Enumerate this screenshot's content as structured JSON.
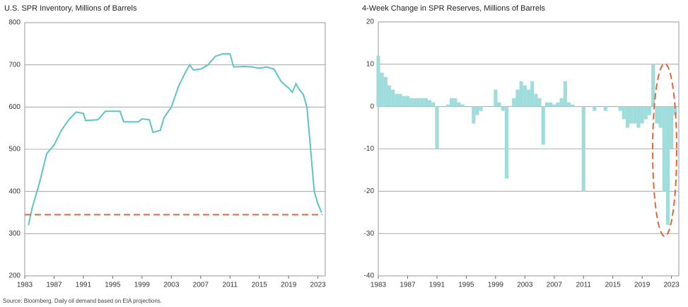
{
  "chart_data": [
    {
      "type": "line",
      "title": "U.S. SPR Inventory, Millions of Barrels",
      "color": "#5cc4c4",
      "x": [
        1983.5,
        1984,
        1985,
        1986,
        1987,
        1988,
        1989,
        1990,
        1991,
        1991.3,
        1993,
        1994,
        1996,
        1996.5,
        1998.5,
        1999,
        2000,
        2000.5,
        2001.5,
        2002,
        2003,
        2004,
        2005,
        2005.5,
        2006,
        2007,
        2008,
        2009,
        2010,
        2011,
        2011.5,
        2013,
        2014,
        2015,
        2016,
        2017,
        2018,
        2019,
        2019.5,
        2020,
        2020.5,
        2021,
        2021.5,
        2022,
        2022.5,
        2023,
        2023.5
      ],
      "values": [
        320,
        360,
        420,
        490,
        510,
        545,
        570,
        588,
        585,
        568,
        570,
        590,
        590,
        565,
        565,
        572,
        570,
        540,
        545,
        575,
        600,
        650,
        685,
        700,
        688,
        690,
        700,
        720,
        726,
        726,
        695,
        696,
        695,
        692,
        695,
        690,
        660,
        645,
        635,
        655,
        640,
        630,
        600,
        500,
        400,
        370,
        350
      ],
      "reference_line": 345,
      "reference_color": "#e0663a",
      "xlim": [
        1983,
        2024
      ],
      "xticks": [
        1983,
        1987,
        1991,
        1995,
        1999,
        2003,
        2007,
        2011,
        2015,
        2019,
        2023
      ],
      "ylim": [
        200,
        800
      ],
      "yticks": [
        200,
        300,
        400,
        500,
        600,
        700,
        800
      ],
      "grid": true
    },
    {
      "type": "bar",
      "title": "4-Week Change in SPR Reserves, Millions of Barrels",
      "color": "#9fdcdc",
      "x": [
        1983,
        1983.5,
        1984,
        1984.5,
        1985,
        1985.5,
        1986,
        1986.5,
        1987,
        1987.5,
        1988,
        1988.5,
        1989,
        1989.5,
        1990,
        1990.5,
        1991,
        1991.5,
        1992,
        1992.5,
        1993,
        1993.5,
        1994,
        1994.5,
        1995,
        1995.5,
        1996,
        1996.5,
        1997,
        1997.5,
        1998,
        1998.5,
        1999,
        1999.5,
        2000,
        2000.5,
        2001,
        2001.5,
        2002,
        2002.5,
        2003,
        2003.5,
        2004,
        2004.5,
        2005,
        2005.5,
        2006,
        2006.5,
        2007,
        2007.5,
        2008,
        2008.5,
        2009,
        2009.5,
        2010,
        2010.5,
        2011,
        2011.5,
        2012,
        2012.5,
        2013,
        2013.5,
        2014,
        2014.5,
        2015,
        2015.5,
        2016,
        2016.5,
        2017,
        2017.5,
        2018,
        2018.5,
        2019,
        2019.5,
        2020,
        2020.5,
        2021,
        2021.5,
        2022,
        2022.5,
        2023,
        2023.5
      ],
      "values": [
        12,
        8,
        7,
        5,
        4,
        3,
        3,
        2.5,
        2.5,
        2,
        2,
        2,
        2,
        2,
        1.5,
        1,
        -10,
        0,
        0,
        0.5,
        2,
        2,
        1,
        0.5,
        0,
        0,
        -4,
        -2,
        -1,
        0,
        0,
        0,
        4,
        1,
        -1,
        -17,
        0,
        2,
        4,
        6,
        5,
        4,
        6,
        3,
        2,
        -9,
        1,
        1,
        0.5,
        1,
        2,
        6,
        1,
        0.5,
        0,
        0,
        -20,
        0,
        0,
        -1,
        0,
        0,
        -1,
        0,
        0,
        0,
        -1,
        -3,
        -5,
        -4,
        -4,
        -5,
        -4,
        -3,
        -2,
        10,
        -4,
        -5,
        -20,
        -28,
        -10,
        -2
      ],
      "xlim": [
        1983,
        2024
      ],
      "xticks": [
        1983,
        1987,
        1991,
        1995,
        1999,
        2003,
        2007,
        2011,
        2015,
        2019,
        2023
      ],
      "ylim": [
        -40,
        20
      ],
      "yticks": [
        -40,
        -30,
        -20,
        -10,
        0,
        10,
        20
      ],
      "grid": true
    }
  ],
  "source": "Source: Bloomberg. Daily oil demand based on EIA projections."
}
